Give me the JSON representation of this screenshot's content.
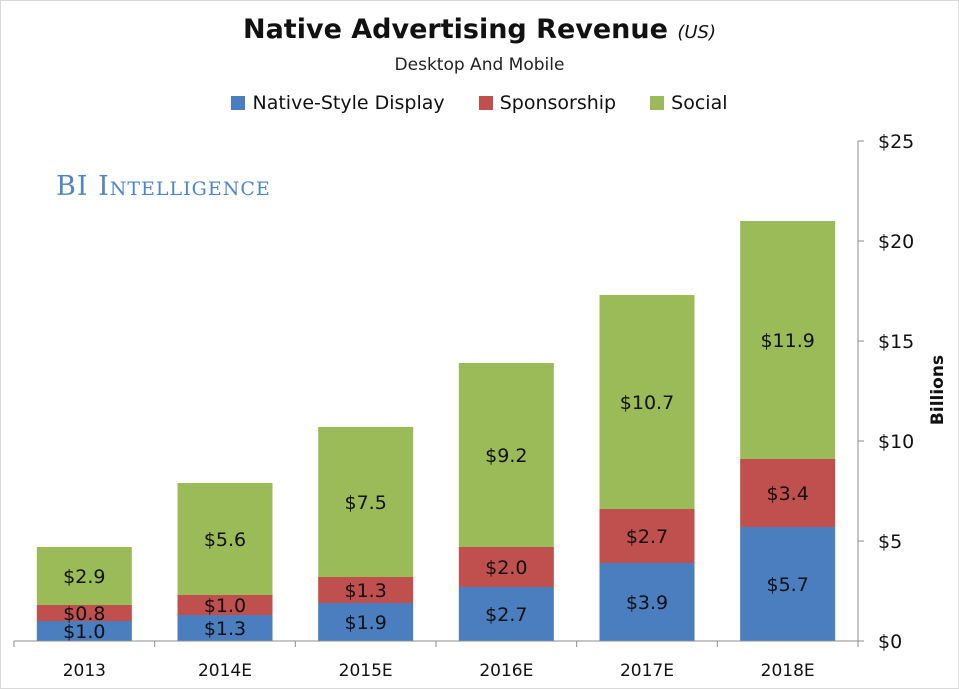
{
  "title": "Native Advertising Revenue",
  "title_unit": "(US)",
  "subtitle": "Desktop And Mobile",
  "watermark": "BI Intelligence",
  "colors": {
    "native_display": "#4a7ebf",
    "sponsorship": "#c0504d",
    "social": "#9bbb59"
  },
  "chart_data": {
    "type": "bar",
    "stacked": true,
    "categories": [
      "2013",
      "2014E",
      "2015E",
      "2016E",
      "2017E",
      "2018E"
    ],
    "series": [
      {
        "name": "Native-Style Display",
        "values": [
          1.0,
          1.3,
          1.9,
          2.7,
          3.9,
          5.7
        ],
        "labels": [
          "$1.0",
          "$1.3",
          "$1.9",
          "$2.7",
          "$3.9",
          "$5.7"
        ]
      },
      {
        "name": "Sponsorship",
        "values": [
          0.8,
          1.0,
          1.3,
          2.0,
          2.7,
          3.4
        ],
        "labels": [
          "$0.8",
          "$1.0",
          "$1.3",
          "$2.0",
          "$2.7",
          "$3.4"
        ]
      },
      {
        "name": "Social",
        "values": [
          2.9,
          5.6,
          7.5,
          9.2,
          10.7,
          11.9
        ],
        "labels": [
          "$2.9",
          "$5.6",
          "$7.5",
          "$9.2",
          "$10.7",
          "$11.9"
        ]
      }
    ],
    "ylabel": "Billions",
    "ylim": [
      0,
      25
    ],
    "yticks": [
      0,
      5,
      10,
      15,
      20,
      25
    ],
    "ytick_labels": [
      "$0",
      "$5",
      "$10",
      "$15",
      "$20",
      "$25"
    ],
    "y_axis_side": "right",
    "legend_position": "top",
    "grid": false
  }
}
